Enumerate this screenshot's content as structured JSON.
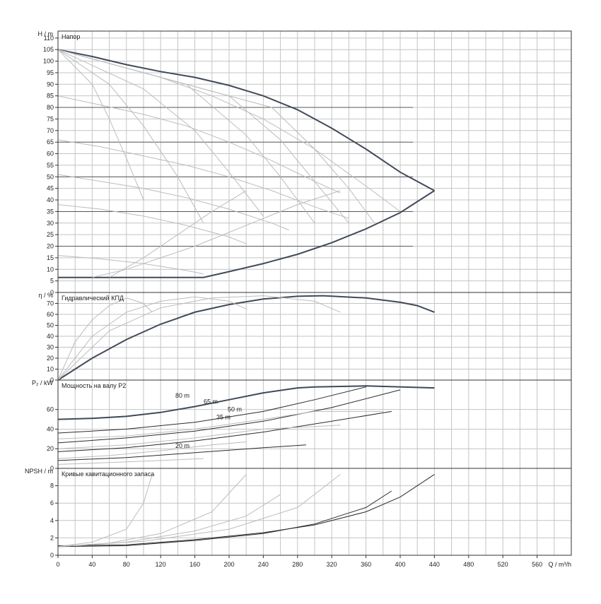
{
  "chart_data": [
    {
      "type": "line",
      "title": "Напор",
      "ylabel": "H / m",
      "xlim": [
        0,
        600
      ],
      "ylim": [
        0,
        113
      ],
      "yticks": [
        0,
        5,
        10,
        15,
        20,
        25,
        30,
        35,
        40,
        45,
        50,
        55,
        60,
        65,
        70,
        75,
        80,
        85,
        90,
        95,
        100,
        105,
        110
      ],
      "series": [
        {
          "style": "envelope",
          "x": [
            0,
            40,
            80,
            120,
            160,
            200,
            240,
            280,
            320,
            360,
            400,
            440
          ],
          "y": [
            105,
            102,
            98.5,
            95.5,
            93,
            89.5,
            85,
            79,
            71,
            62,
            52,
            44
          ]
        },
        {
          "style": "envelope",
          "x": [
            0,
            170,
            200,
            240,
            280,
            320,
            360,
            400,
            440
          ],
          "y": [
            6.5,
            6.5,
            9,
            12.5,
            16.5,
            21.5,
            27.5,
            34.5,
            44
          ]
        },
        {
          "style": "speed",
          "x": [
            0,
            60,
            120,
            180,
            240,
            300,
            360,
            400
          ],
          "y": [
            105,
            99,
            93,
            85,
            75,
            62,
            46,
            35
          ]
        },
        {
          "style": "speed",
          "x": [
            0,
            50,
            100,
            150,
            200,
            250,
            300,
            330
          ],
          "y": [
            85,
            81,
            77,
            72,
            65,
            57,
            48,
            43
          ]
        },
        {
          "style": "speed",
          "x": [
            0,
            50,
            100,
            150,
            200,
            250,
            300,
            340
          ],
          "y": [
            66,
            63,
            59,
            55,
            50,
            44,
            37,
            32
          ]
        },
        {
          "style": "speed",
          "x": [
            0,
            50,
            100,
            150,
            200,
            250,
            270
          ],
          "y": [
            51,
            48,
            45,
            41,
            36,
            30,
            27
          ]
        },
        {
          "style": "speed",
          "x": [
            0,
            50,
            100,
            150,
            200,
            220
          ],
          "y": [
            38,
            36,
            33,
            29,
            24,
            21
          ]
        },
        {
          "style": "speed",
          "x": [
            0,
            50,
            100,
            150,
            170
          ],
          "y": [
            16,
            14.5,
            12.5,
            9.5,
            8
          ]
        },
        {
          "style": "efficiency",
          "x": [
            0,
            40,
            60,
            80,
            100
          ],
          "y": [
            105,
            90,
            75,
            58,
            40
          ]
        },
        {
          "style": "efficiency",
          "x": [
            0,
            60,
            100,
            140,
            170
          ],
          "y": [
            105,
            90,
            72,
            50,
            30
          ]
        },
        {
          "style": "efficiency",
          "x": [
            0,
            100,
            160,
            200,
            240
          ],
          "y": [
            105,
            88,
            70,
            52,
            33
          ]
        },
        {
          "style": "efficiency",
          "x": [
            0,
            150,
            220,
            260,
            300
          ],
          "y": [
            105,
            90,
            68,
            50,
            30
          ]
        },
        {
          "style": "efficiency",
          "x": [
            0,
            200,
            260,
            300,
            340
          ],
          "y": [
            105,
            85,
            66,
            48,
            30
          ]
        },
        {
          "style": "efficiency",
          "x": [
            0,
            250,
            300,
            340,
            370
          ],
          "y": [
            105,
            80,
            62,
            45,
            30
          ]
        },
        {
          "style": "limit",
          "x": [
            40,
            80,
            120,
            160,
            200,
            240,
            280,
            330
          ],
          "y": [
            6.5,
            10,
            15,
            20,
            26,
            32,
            38,
            44
          ]
        },
        {
          "style": "limit",
          "x": [
            60,
            100,
            140,
            180,
            220
          ],
          "y": [
            6.5,
            15,
            25,
            35,
            44
          ]
        }
      ],
      "head_levels": [
        80,
        65,
        50,
        35,
        20
      ]
    },
    {
      "type": "line",
      "title": "Гидравлический КПД",
      "ylabel": "η / %",
      "ylim": [
        0,
        80
      ],
      "yticks": [
        0,
        10,
        20,
        30,
        40,
        50,
        60,
        70
      ],
      "series": [
        {
          "style": "main",
          "x": [
            0,
            40,
            80,
            120,
            160,
            200,
            240,
            280,
            310,
            360,
            400,
            420,
            440
          ],
          "y": [
            0,
            20,
            37,
            51,
            62,
            69,
            74,
            76.5,
            77,
            75,
            71,
            68,
            62
          ]
        },
        {
          "style": "speed",
          "x": [
            0,
            20,
            40,
            60,
            80,
            100,
            110
          ],
          "y": [
            0,
            35,
            55,
            68,
            75,
            70,
            62
          ]
        },
        {
          "style": "speed",
          "x": [
            0,
            40,
            80,
            120,
            160,
            200,
            220
          ],
          "y": [
            0,
            40,
            62,
            72,
            76,
            72,
            65
          ]
        },
        {
          "style": "speed",
          "x": [
            0,
            60,
            120,
            180,
            240,
            300,
            330
          ],
          "y": [
            0,
            45,
            66,
            75,
            77,
            72,
            62
          ]
        }
      ]
    },
    {
      "type": "line",
      "title": "Мощность на валу P2",
      "ylabel": "P₂ / kW",
      "ylim": [
        0,
        90
      ],
      "yticks": [
        0,
        20,
        40,
        60
      ],
      "annotations": [
        "80 m",
        "65 m",
        "50 m",
        "35 m",
        "20 m"
      ],
      "series": [
        {
          "style": "envelope",
          "x": [
            0,
            40,
            80,
            120,
            160,
            200,
            240,
            280,
            300,
            360,
            440
          ],
          "y": [
            50,
            51,
            53,
            57,
            63,
            70,
            77,
            82,
            83,
            84,
            82
          ]
        },
        {
          "style": "main",
          "x": [
            0,
            80,
            160,
            240,
            300,
            360
          ],
          "y": [
            36,
            40,
            47,
            58,
            70,
            83
          ]
        },
        {
          "style": "main",
          "x": [
            0,
            80,
            160,
            240,
            320,
            400
          ],
          "y": [
            26,
            31,
            38,
            48,
            62,
            80
          ]
        },
        {
          "style": "main",
          "x": [
            0,
            80,
            160,
            240,
            320,
            390
          ],
          "y": [
            17,
            21,
            28,
            37,
            48,
            58
          ]
        },
        {
          "style": "main",
          "x": [
            0,
            80,
            160,
            240,
            290
          ],
          "y": [
            8,
            11,
            16,
            21,
            24
          ]
        },
        {
          "style": "speed",
          "x": [
            0,
            80,
            160,
            240,
            300,
            380
          ],
          "y": [
            30,
            33,
            40,
            50,
            58,
            58
          ]
        },
        {
          "style": "speed",
          "x": [
            0,
            80,
            160,
            240,
            330
          ],
          "y": [
            20,
            24,
            31,
            40,
            44
          ]
        },
        {
          "style": "speed",
          "x": [
            0,
            60,
            120,
            180,
            220
          ],
          "y": [
            10,
            13,
            18,
            24,
            27
          ]
        },
        {
          "style": "speed",
          "x": [
            0,
            60,
            120,
            170
          ],
          "y": [
            4,
            6,
            8,
            10
          ]
        }
      ]
    },
    {
      "type": "line",
      "title": "Кривые кавитационного запаса",
      "ylabel": "NPSH / m",
      "xlabel": "Q / m³/h",
      "xlim": [
        0,
        600
      ],
      "ylim": [
        0,
        10
      ],
      "xticks": [
        0,
        40,
        80,
        120,
        160,
        200,
        240,
        280,
        320,
        360,
        400,
        440,
        480,
        520,
        560
      ],
      "yticks": [
        0,
        2,
        4,
        6,
        8
      ],
      "series": [
        {
          "style": "main",
          "x": [
            0,
            80,
            160,
            240,
            300,
            360,
            400,
            440
          ],
          "y": [
            1.1,
            1.2,
            1.8,
            2.6,
            3.5,
            5.0,
            6.7,
            9.3
          ]
        },
        {
          "style": "main",
          "x": [
            0,
            80,
            160,
            240,
            300,
            360,
            390
          ],
          "y": [
            1.0,
            1.1,
            1.7,
            2.5,
            3.6,
            5.5,
            7.4
          ]
        },
        {
          "style": "speed",
          "x": [
            0,
            40,
            80,
            100,
            110
          ],
          "y": [
            1.0,
            1.5,
            3.0,
            6.0,
            9.3
          ]
        },
        {
          "style": "speed",
          "x": [
            0,
            60,
            120,
            180,
            220
          ],
          "y": [
            1.0,
            1.4,
            2.5,
            5.0,
            9.3
          ]
        },
        {
          "style": "speed",
          "x": [
            0,
            80,
            160,
            220,
            260
          ],
          "y": [
            1.0,
            1.5,
            2.8,
            4.5,
            7.0
          ]
        },
        {
          "style": "speed",
          "x": [
            0,
            100,
            200,
            280,
            330
          ],
          "y": [
            1.0,
            1.6,
            3.0,
            5.5,
            9.3
          ]
        }
      ]
    }
  ]
}
